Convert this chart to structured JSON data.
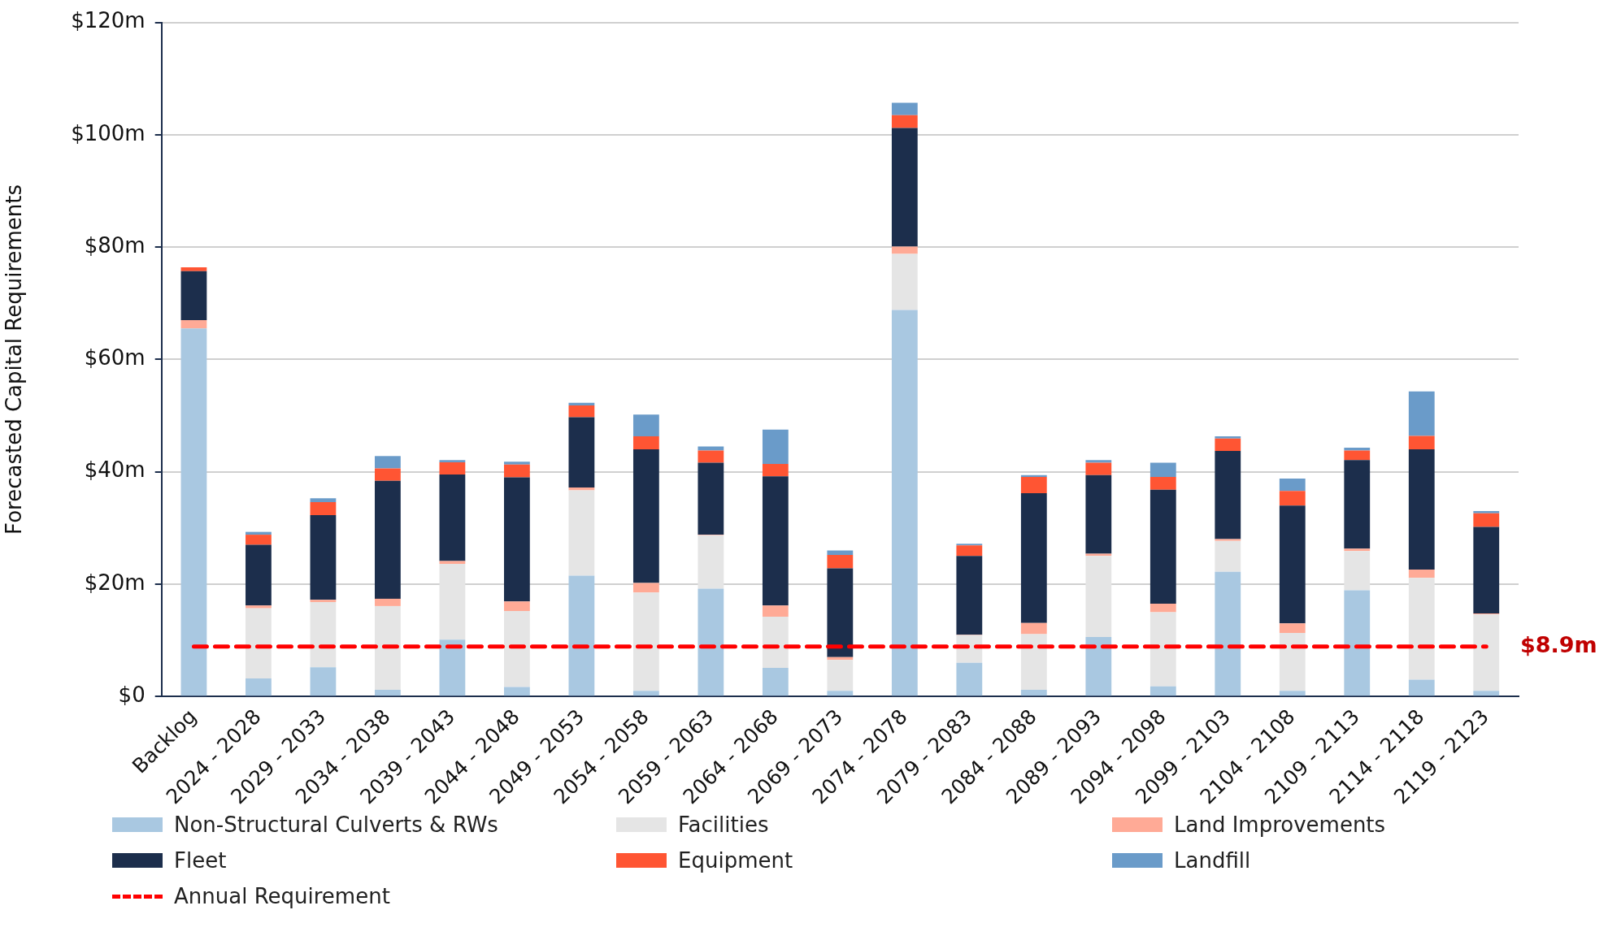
{
  "chart_data": {
    "type": "bar",
    "stacked": true,
    "ylabel": "Forecasted Capital Requirements",
    "categories": [
      "Backlog",
      "2024 - 2028",
      "2029 - 2033",
      "2034 - 2038",
      "2039 - 2043",
      "2044 - 2048",
      "2049 - 2053",
      "2054 - 2058",
      "2059 - 2063",
      "2064 - 2068",
      "2069 - 2073",
      "2074 - 2078",
      "2079 - 2083",
      "2084 - 2088",
      "2089 - 2093",
      "2094 - 2098",
      "2099 - 2103",
      "2104 - 2108",
      "2109 - 2113",
      "2114 - 2118",
      "2119 - 2123"
    ],
    "series": [
      {
        "name": "Non-Structural Culverts & RWs",
        "color": "#a9c8e1",
        "values": [
          65.5,
          3.2,
          5.2,
          1.2,
          10.1,
          1.7,
          21.5,
          1,
          19.2,
          5.1,
          1,
          68.8,
          6,
          1.2,
          10.6,
          1.8,
          22.2,
          1,
          18.9,
          3,
          1
        ]
      },
      {
        "name": "Facilities",
        "color": "#e5e5e5",
        "values": [
          0,
          12.5,
          11.6,
          14.9,
          13.5,
          13.5,
          15.2,
          17.5,
          9.5,
          9.1,
          5.5,
          10,
          4.9,
          9.9,
          14.4,
          13.2,
          5.5,
          10.3,
          7,
          18.1,
          13.6
        ]
      },
      {
        "name": "Land Improvements",
        "color": "#ffaa96",
        "values": [
          1.5,
          0.5,
          0.4,
          1.3,
          0.5,
          1.7,
          0.5,
          1.7,
          0.1,
          2,
          0.5,
          1.3,
          0.1,
          2,
          0.4,
          1.5,
          0.3,
          1.7,
          0.4,
          1.5,
          0.2
        ]
      },
      {
        "name": "Fleet",
        "color": "#1c2e4c",
        "values": [
          8.7,
          10.8,
          15.1,
          21,
          15.4,
          22.1,
          12.5,
          23.8,
          12.8,
          23,
          15.8,
          21.1,
          14,
          23.1,
          14,
          20.3,
          15.7,
          21,
          15.8,
          21.4,
          15.4
        ]
      },
      {
        "name": "Equipment",
        "color": "#ff5533",
        "values": [
          0.7,
          1.8,
          2.3,
          2.2,
          2.2,
          2.3,
          2.1,
          2.3,
          2.2,
          2.2,
          2.4,
          2.3,
          1.9,
          2.9,
          2.2,
          2.3,
          2.2,
          2.6,
          1.7,
          2.4,
          2.4
        ]
      },
      {
        "name": "Landfill",
        "color": "#6a9bc9",
        "values": [
          0,
          0.5,
          0.7,
          2.2,
          0.4,
          0.5,
          0.5,
          3.9,
          0.7,
          6.1,
          0.8,
          2.2,
          0.3,
          0.3,
          0.5,
          2.5,
          0.4,
          2.2,
          0.5,
          7.9,
          0.4
        ]
      },
      {
        "name": "Annual Requirement",
        "type": "line",
        "color": "#ff0000",
        "line_style": "dashed",
        "marker": "none",
        "values": [
          8.9,
          8.9,
          8.9,
          8.9,
          8.9,
          8.9,
          8.9,
          8.9,
          8.9,
          8.9,
          8.9,
          8.9,
          8.9,
          8.9,
          8.9,
          8.9,
          8.9,
          8.9,
          8.9,
          8.9,
          8.9
        ]
      }
    ],
    "annotations": [
      {
        "text": "$8.9m",
        "x": "2119 - 2123",
        "y": 8.9
      }
    ],
    "ylim": [
      0,
      120
    ],
    "yticks": [
      {
        "value": 0,
        "label": "$0"
      },
      {
        "value": 20,
        "label": "$20m"
      },
      {
        "value": 40,
        "label": "$40m"
      },
      {
        "value": 60,
        "label": "$60m"
      },
      {
        "value": 80,
        "label": "$80m"
      },
      {
        "value": 100,
        "label": "$100m"
      },
      {
        "value": 120,
        "label": "$120m"
      }
    ],
    "grid": "y",
    "legend": "bottom"
  }
}
